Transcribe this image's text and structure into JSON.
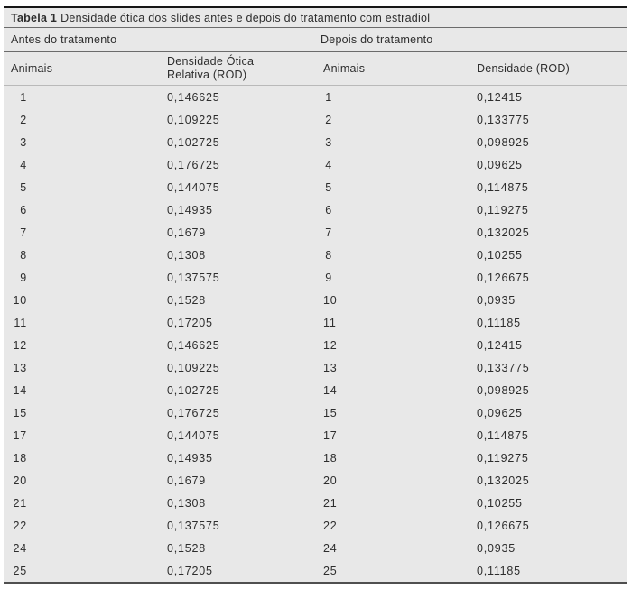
{
  "table": {
    "caption": {
      "label": "Tabela 1",
      "text": "Densidade ótica dos slides antes e depois do tratamento com estradiol"
    },
    "groups": {
      "before": "Antes do tratamento",
      "after": "Depois do tratamento"
    },
    "columns": {
      "before_animals": "Animais",
      "before_density_line1": "Densidade Ótica",
      "before_density_line2": "Relativa (ROD)",
      "after_animals": "Animais",
      "after_density": "Densidade (ROD)"
    },
    "rows": [
      [
        "1",
        "0,146625",
        "1",
        "0,12415"
      ],
      [
        "2",
        "0,109225",
        "2",
        "0,133775"
      ],
      [
        "3",
        "0,102725",
        "3",
        "0,098925"
      ],
      [
        "4",
        "0,176725",
        "4",
        "0,09625"
      ],
      [
        "5",
        "0,144075",
        "5",
        "0,114875"
      ],
      [
        "6",
        "0,14935",
        "6",
        "0,119275"
      ],
      [
        "7",
        "0,1679",
        "7",
        "0,132025"
      ],
      [
        "8",
        "0,1308",
        "8",
        "0,10255"
      ],
      [
        "9",
        "0,137575",
        "9",
        "0,126675"
      ],
      [
        "10",
        "0,1528",
        "10",
        "0,0935"
      ],
      [
        "11",
        "0,17205",
        "11",
        "0,11185"
      ],
      [
        "12",
        "0,146625",
        "12",
        "0,12415"
      ],
      [
        "13",
        "0,109225",
        "13",
        "0,133775"
      ],
      [
        "14",
        "0,102725",
        "14",
        "0,098925"
      ],
      [
        "15",
        "0,176725",
        "15",
        "0,09625"
      ],
      [
        "17",
        "0,144075",
        "17",
        "0,114875"
      ],
      [
        "18",
        "0,14935",
        "18",
        "0,119275"
      ],
      [
        "20",
        "0,1679",
        "20",
        "0,132025"
      ],
      [
        "21",
        "0,1308",
        "21",
        "0,10255"
      ],
      [
        "22",
        "0,137575",
        "22",
        "0,126675"
      ],
      [
        "24",
        "0,1528",
        "24",
        "0,0935"
      ],
      [
        "25",
        "0,17205",
        "25",
        "0,11185"
      ]
    ]
  },
  "colors": {
    "table_background": "#e8e8e8",
    "text": "#2d2d2d",
    "border_top": "#161616",
    "border_bottom": "#4f4f4f",
    "rule_dark": "#6b6b6b",
    "rule_light": "#b9b9b9"
  }
}
